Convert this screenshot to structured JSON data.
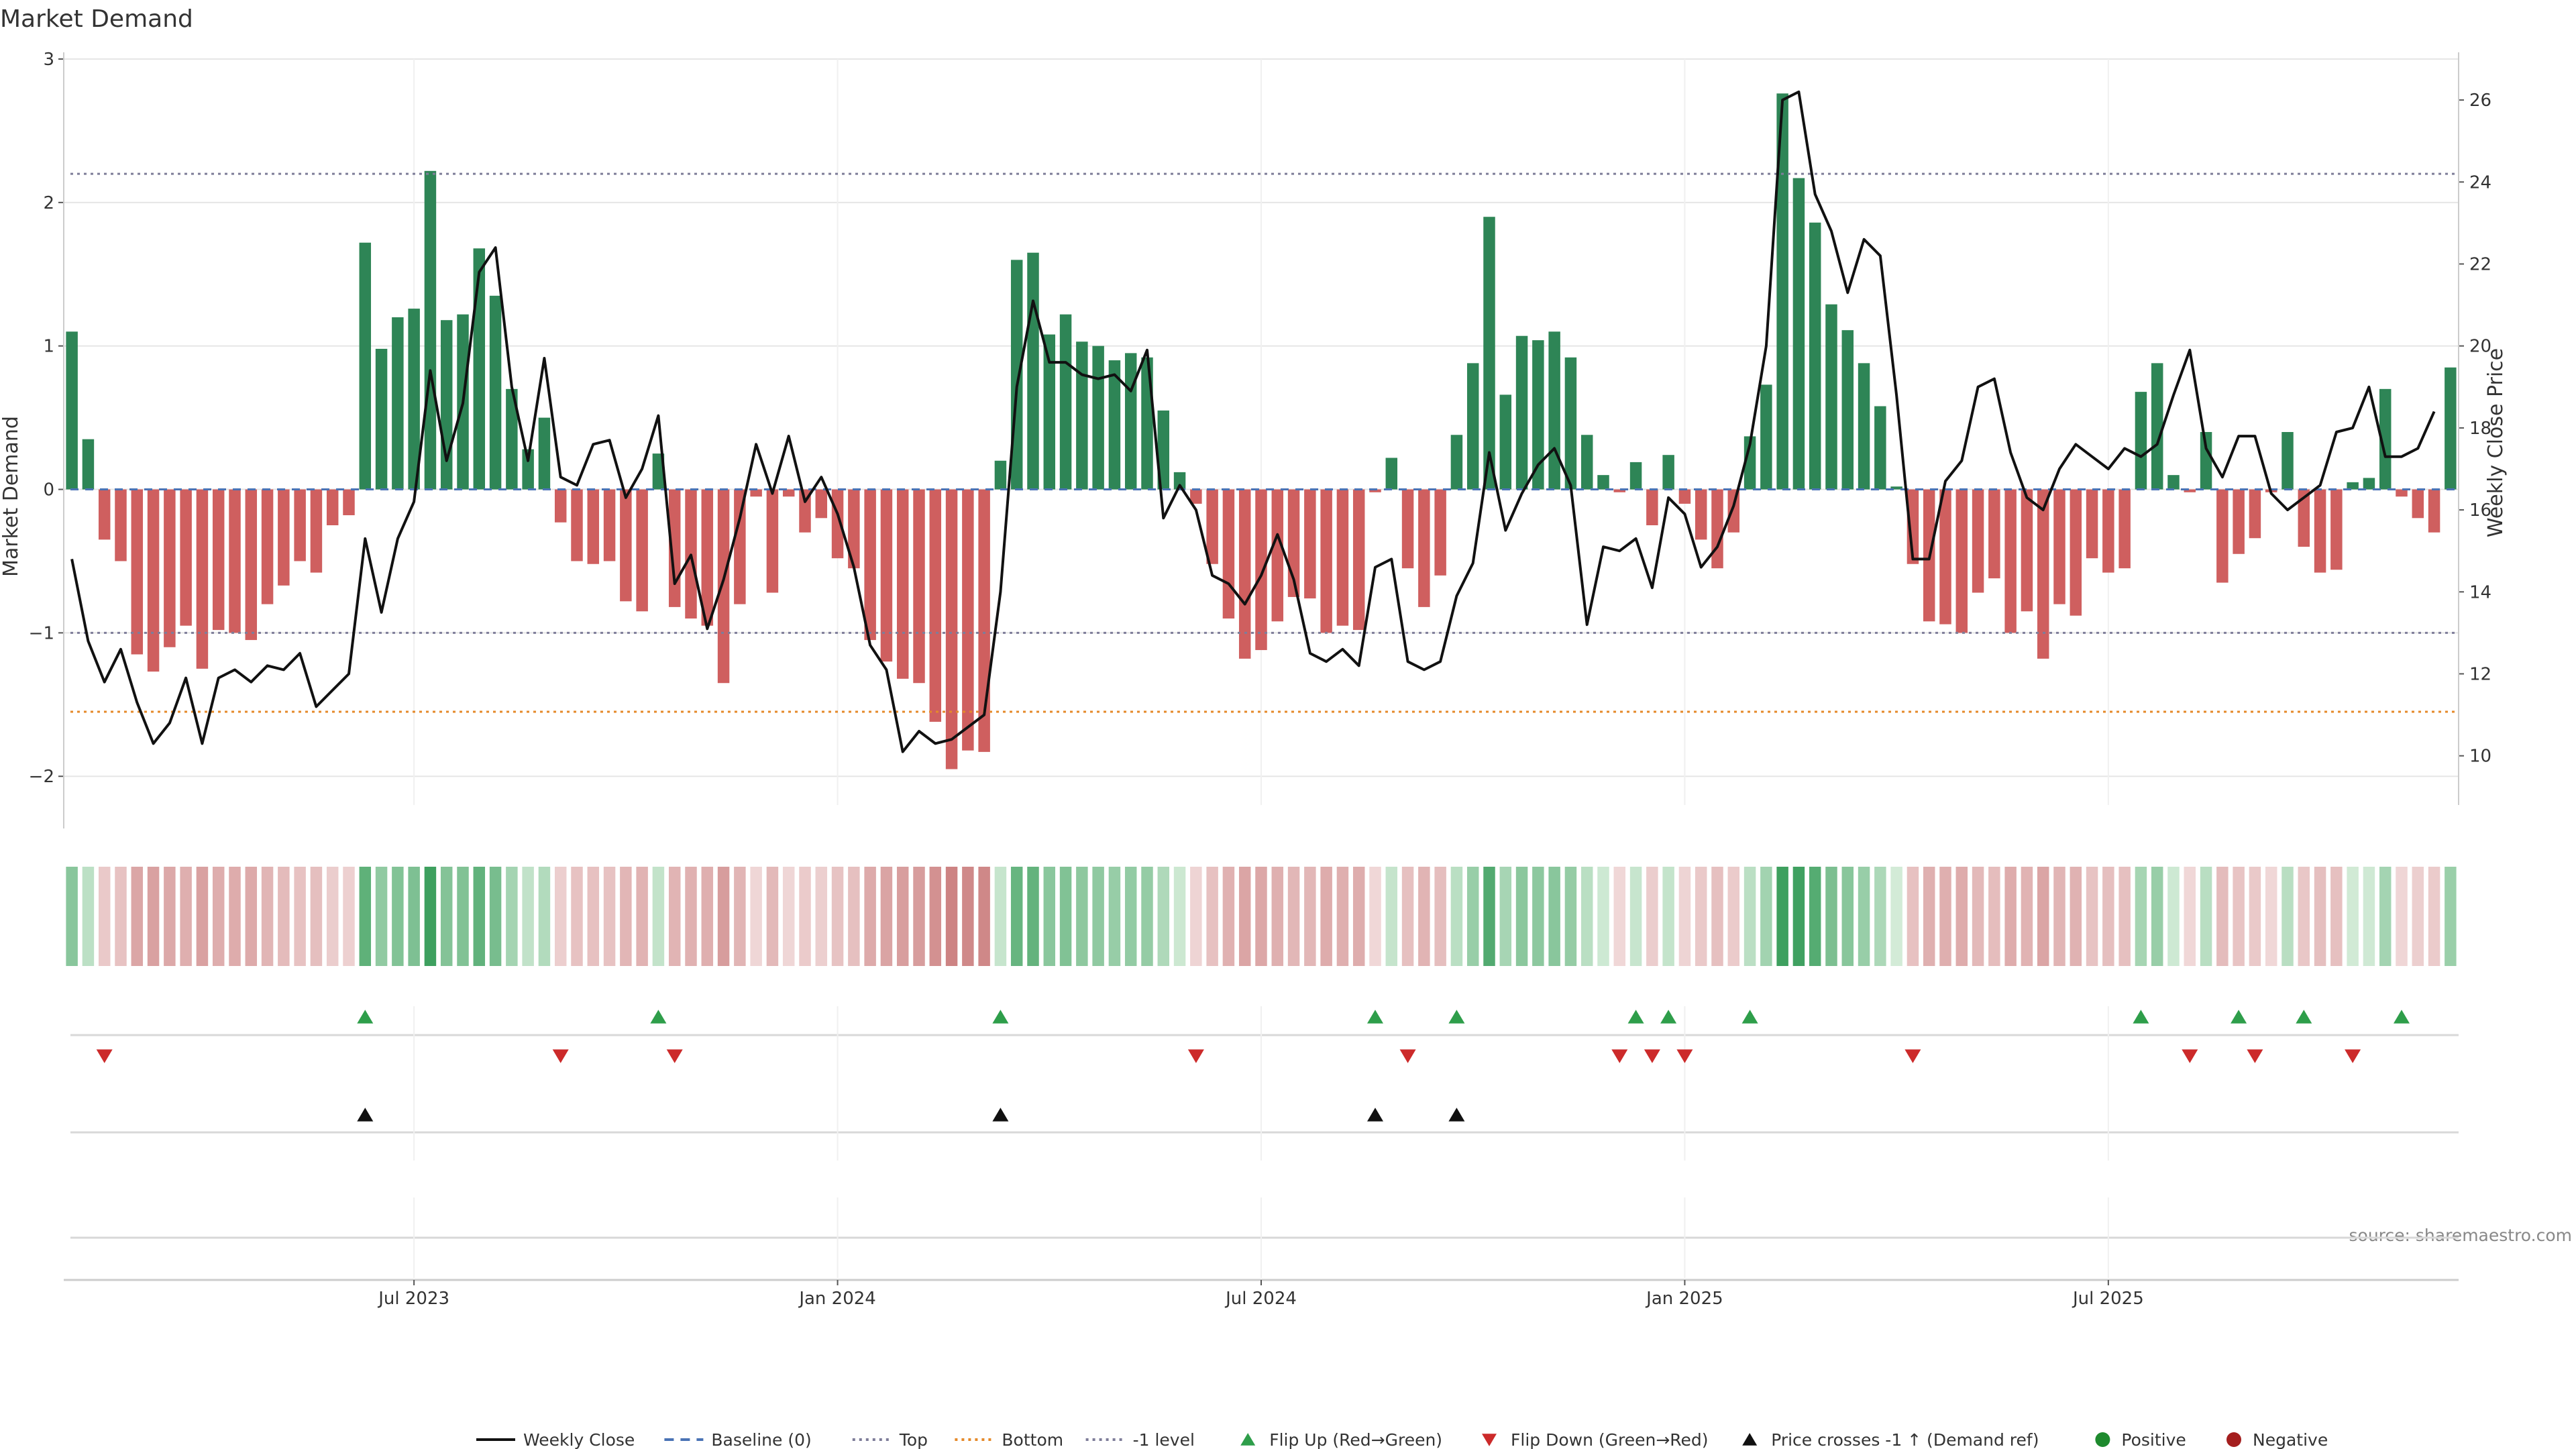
{
  "chart_data": {
    "type": "bar",
    "title": "Market Demand",
    "source": "source: sharemaestro.com",
    "ylabel_left": "Market Demand",
    "ylabel_right": "Weekly Close Price",
    "ylim_left": [
      -2.2,
      3.0
    ],
    "ylim_right": [
      8.8,
      27.0
    ],
    "yticks_left": [
      {
        "value": 3,
        "label": "3"
      },
      {
        "value": 2,
        "label": "2"
      },
      {
        "value": 1,
        "label": "1"
      },
      {
        "value": 0,
        "label": "0"
      },
      {
        "value": -1,
        "label": "−1"
      },
      {
        "value": -2,
        "label": "−2"
      }
    ],
    "yticks_right": [
      {
        "value": 10,
        "label": "10"
      },
      {
        "value": 12,
        "label": "12"
      },
      {
        "value": 14,
        "label": "14"
      },
      {
        "value": 16,
        "label": "16"
      },
      {
        "value": 18,
        "label": "18"
      },
      {
        "value": 20,
        "label": "20"
      },
      {
        "value": 22,
        "label": "22"
      },
      {
        "value": 24,
        "label": "24"
      },
      {
        "value": 26,
        "label": "26"
      }
    ],
    "xticks": [
      {
        "week": 21,
        "label": "Jul 2023"
      },
      {
        "week": 47,
        "label": "Jan 2024"
      },
      {
        "week": 73,
        "label": "Jul 2024"
      },
      {
        "week": 99,
        "label": "Jan 2025"
      },
      {
        "week": 125,
        "label": "Jul 2025"
      }
    ],
    "levels": {
      "top": 2.2,
      "bottom": -1.55,
      "minus_one": -1.0,
      "baseline": 0
    },
    "series": [
      {
        "name": "Market Demand",
        "values": [
          1.1,
          0.35,
          -0.35,
          -0.5,
          -1.15,
          -1.27,
          -1.1,
          -0.95,
          -1.25,
          -0.98,
          -1.0,
          -1.05,
          -0.8,
          -0.67,
          -0.5,
          -0.58,
          -0.25,
          -0.18,
          1.72,
          0.98,
          1.2,
          1.26,
          2.22,
          1.18,
          1.22,
          1.68,
          1.35,
          0.7,
          0.28,
          0.5,
          -0.23,
          -0.5,
          -0.52,
          -0.5,
          -0.78,
          -0.85,
          0.25,
          -0.82,
          -0.9,
          -0.95,
          -1.35,
          -0.8,
          -0.05,
          -0.72,
          -0.05,
          -0.3,
          -0.2,
          -0.48,
          -0.55,
          -1.05,
          -1.2,
          -1.32,
          -1.35,
          -1.62,
          -1.95,
          -1.82,
          -1.83,
          0.2,
          1.6,
          1.65,
          1.08,
          1.22,
          1.03,
          1.0,
          0.9,
          0.95,
          0.92,
          0.55,
          0.12,
          -0.1,
          -0.52,
          -0.9,
          -1.18,
          -1.12,
          -0.92,
          -0.75,
          -0.76,
          -1.0,
          -0.95,
          -0.98,
          -0.02,
          0.22,
          -0.55,
          -0.82,
          -0.6,
          0.38,
          0.88,
          1.9,
          0.66,
          1.07,
          1.04,
          1.1,
          0.92,
          0.38,
          0.1,
          -0.02,
          0.19,
          -0.25,
          0.24,
          -0.1,
          -0.35,
          -0.55,
          -0.3,
          0.37,
          0.73,
          2.76,
          2.17,
          1.86,
          1.29,
          1.11,
          0.88,
          0.58,
          0.02,
          -0.52,
          -0.92,
          -0.94,
          -1.0,
          -0.72,
          -0.62,
          -1.0,
          -0.85,
          -1.18,
          -0.8,
          -0.88,
          -0.48,
          -0.58,
          -0.55,
          0.68,
          0.88,
          0.1,
          -0.02,
          0.4,
          -0.65,
          -0.45,
          -0.34,
          -0.02,
          0.4,
          -0.4,
          -0.58,
          -0.56,
          0.05,
          0.08,
          0.7,
          -0.05,
          -0.2,
          -0.3,
          0.85
        ]
      },
      {
        "name": "Weekly Close",
        "values": [
          14.8,
          12.8,
          11.8,
          12.6,
          11.3,
          10.3,
          10.8,
          11.9,
          10.3,
          11.9,
          12.1,
          11.8,
          12.2,
          12.1,
          12.5,
          11.2,
          11.6,
          12.0,
          15.3,
          13.5,
          15.3,
          16.2,
          19.4,
          17.2,
          18.6,
          21.8,
          22.4,
          19.0,
          17.2,
          19.7,
          16.8,
          16.6,
          17.6,
          17.7,
          16.3,
          17.0,
          18.3,
          14.2,
          14.9,
          13.1,
          14.3,
          15.8,
          17.6,
          16.4,
          17.8,
          16.2,
          16.8,
          15.9,
          14.6,
          12.7,
          12.1,
          10.1,
          10.6,
          10.3,
          10.4,
          10.7,
          11.0,
          14.0,
          19.0,
          21.1,
          19.6,
          19.6,
          19.3,
          19.2,
          19.3,
          18.9,
          19.9,
          15.8,
          16.6,
          16.0,
          14.4,
          14.2,
          13.7,
          14.4,
          15.4,
          14.3,
          12.5,
          12.3,
          12.6,
          12.2,
          14.6,
          14.8,
          12.3,
          12.1,
          12.3,
          13.9,
          14.7,
          17.4,
          15.5,
          16.4,
          17.1,
          17.5,
          16.6,
          13.2,
          15.1,
          15.0,
          15.3,
          14.1,
          16.3,
          15.9,
          14.6,
          15.1,
          16.1,
          17.6,
          20.0,
          26.0,
          26.2,
          23.7,
          22.8,
          21.3,
          22.6,
          22.2,
          18.8,
          14.8,
          14.8,
          16.7,
          17.2,
          19.0,
          19.2,
          17.4,
          16.3,
          16.0,
          17.0,
          17.6,
          17.3,
          17.0,
          17.5,
          17.3,
          17.6,
          18.8,
          19.9,
          17.5,
          16.8,
          17.8,
          17.8,
          16.4,
          16.0,
          16.3,
          16.6,
          17.9,
          18.0,
          19.0,
          17.3,
          17.3,
          17.5,
          18.4
        ]
      }
    ],
    "signals": {
      "flip_up_weeks": [
        18,
        36,
        57,
        80,
        85,
        96,
        98,
        103,
        127,
        133,
        137,
        143
      ],
      "flip_down_weeks": [
        2,
        30,
        37,
        69,
        82,
        95,
        97,
        99,
        113,
        130,
        134,
        140
      ],
      "price_cross_weeks": [
        18,
        57,
        80,
        85
      ]
    },
    "legend": {
      "position": "bottom-center",
      "items": [
        {
          "label": "Weekly Close",
          "kind": "line",
          "color": "#111111"
        },
        {
          "label": "Baseline (0)",
          "kind": "dash",
          "color": "#4a73b5"
        },
        {
          "label": "Top",
          "kind": "dot",
          "color": "#7e7d99"
        },
        {
          "label": "Bottom",
          "kind": "dot",
          "color": "#e58a2a"
        },
        {
          "label": "-1 level",
          "kind": "dot",
          "color": "#7e7d99"
        },
        {
          "label": "Flip Up (Red→Green)",
          "kind": "tri-up",
          "color": "#2e9e4a"
        },
        {
          "label": "Flip Down (Green→Red)",
          "kind": "tri-down",
          "color": "#cc2a2a"
        },
        {
          "label": "Price crosses -1 ↑ (Demand ref)",
          "kind": "tri-up",
          "color": "#111111"
        },
        {
          "label": "Positive",
          "kind": "dot-circle",
          "color": "#1e8a2e"
        },
        {
          "label": "Negative",
          "kind": "dot-circle",
          "color": "#a41e1e"
        }
      ]
    },
    "colors": {
      "positive": "#2e8556",
      "negative": "#cf5f5f",
      "grid": "#e6e6e6",
      "axis": "#cccccc"
    }
  }
}
